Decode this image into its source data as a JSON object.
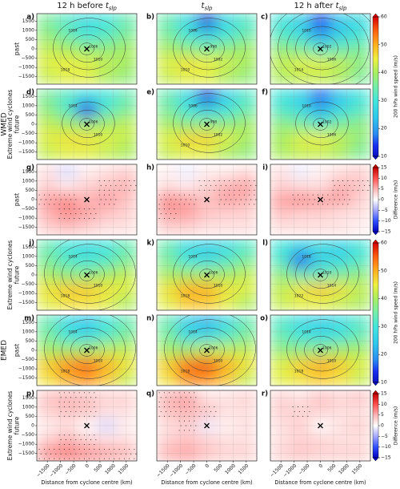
{
  "column_titles": [
    {
      "text": "12 h before",
      "symbol": "t",
      "subscript": "slp"
    },
    {
      "symbol": "t",
      "subscript": "slp"
    },
    {
      "text": "12 h after",
      "symbol": "t",
      "subscript": "slp"
    }
  ],
  "group_labels": [
    "WMED",
    "EMED"
  ],
  "side_labels": [
    "Extreme wind cyclones",
    "Extreme wind cyclones",
    "Extreme wind cyclones"
  ],
  "row_labels": [
    "past",
    "future",
    "past",
    "future",
    "past",
    "future"
  ],
  "axes": {
    "xlim": [
      -1900,
      1900
    ],
    "ylim": [
      -1900,
      1900
    ],
    "xticks": [
      {
        "value": -1500,
        "label": "−1500"
      },
      {
        "value": -1000,
        "label": "−1000"
      },
      {
        "value": -500,
        "label": "−500"
      },
      0,
      500,
      1000,
      1500
    ],
    "yticks": [
      {
        "value": -1500,
        "label": "−1500"
      },
      {
        "value": -1000,
        "label": "−1000"
      },
      {
        "value": -500,
        "label": "−500"
      },
      0,
      500,
      1000,
      1500
    ],
    "xlabel": "Distance from cyclone centre (km)"
  },
  "colorbars": {
    "wind": {
      "label": "200 hPa wind speed (m/s)",
      "lim": [
        10,
        60
      ],
      "ticks": [
        10,
        20,
        30,
        40,
        50,
        60
      ],
      "colors": [
        [
          10,
          "#0a10c0"
        ],
        [
          14,
          "#1a30f0"
        ],
        [
          18,
          "#2a8cf0"
        ],
        [
          24,
          "#30c8ec"
        ],
        [
          30,
          "#44e6dc"
        ],
        [
          35,
          "#74eeaa"
        ],
        [
          40,
          "#a8ee60"
        ],
        [
          45,
          "#eef040"
        ],
        [
          50,
          "#ffb020"
        ],
        [
          55,
          "#ff6010"
        ],
        [
          60,
          "#d40000"
        ]
      ]
    },
    "diff": {
      "label": "Difference (m/s)",
      "lim": [
        -15,
        15
      ],
      "ticks": [
        {
          "value": -15,
          "label": "−15"
        },
        {
          "value": -10,
          "label": "−10"
        },
        {
          "value": -5,
          "label": "−5"
        },
        0,
        5,
        10,
        15
      ],
      "colors": [
        [
          -15,
          "#0000c0"
        ],
        [
          -10,
          "#3050ff"
        ],
        [
          -5,
          "#a4a8ff"
        ],
        [
          0,
          "#ffffff"
        ],
        [
          5,
          "#ffb4b4"
        ],
        [
          10,
          "#ff5050"
        ],
        [
          15,
          "#c00000"
        ]
      ]
    }
  },
  "chart_data": [
    {
      "type": "contour",
      "title": "a)",
      "colorbar": "wind",
      "z": [
        [
          36,
          32,
          28,
          30,
          34
        ],
        [
          38,
          34,
          30,
          32,
          36
        ],
        [
          42,
          40,
          38,
          38,
          40
        ],
        [
          44,
          45,
          44,
          42,
          40
        ],
        [
          42,
          44,
          44,
          40,
          38
        ]
      ],
      "isobars": [
        1006,
        1010,
        1014,
        1018
      ]
    },
    {
      "type": "contour",
      "title": "b)",
      "colorbar": "wind",
      "z": [
        [
          34,
          28,
          12,
          28,
          32
        ],
        [
          36,
          30,
          26,
          30,
          34
        ],
        [
          40,
          38,
          36,
          38,
          40
        ],
        [
          44,
          46,
          45,
          43,
          40
        ],
        [
          42,
          44,
          44,
          40,
          38
        ]
      ],
      "isobars": [
        998,
        1002,
        1006,
        1010
      ]
    },
    {
      "type": "contour",
      "title": "c)",
      "colorbar": "wind",
      "z": [
        [
          30,
          26,
          14,
          24,
          28
        ],
        [
          32,
          28,
          20,
          26,
          30
        ],
        [
          38,
          36,
          32,
          34,
          36
        ],
        [
          42,
          44,
          44,
          42,
          38
        ],
        [
          40,
          42,
          42,
          40,
          36
        ]
      ],
      "isobars": [
        1002,
        1006,
        1010,
        1014,
        1018,
        1022
      ]
    },
    {
      "type": "contour",
      "title": "d)",
      "colorbar": "wind",
      "z": [
        [
          36,
          32,
          28,
          30,
          34
        ],
        [
          38,
          32,
          14,
          32,
          36
        ],
        [
          42,
          40,
          38,
          40,
          42
        ],
        [
          44,
          46,
          46,
          44,
          42
        ],
        [
          42,
          44,
          44,
          42,
          40
        ]
      ],
      "isobars": [
        1006,
        1010,
        1014
      ]
    },
    {
      "type": "contour",
      "title": "e)",
      "colorbar": "wind",
      "z": [
        [
          34,
          28,
          12,
          26,
          32
        ],
        [
          36,
          30,
          26,
          30,
          34
        ],
        [
          40,
          38,
          38,
          38,
          40
        ],
        [
          44,
          47,
          47,
          44,
          40
        ],
        [
          42,
          44,
          44,
          40,
          38
        ]
      ],
      "isobars": [
        998,
        1002,
        1006,
        1010
      ]
    },
    {
      "type": "contour",
      "title": "f)",
      "colorbar": "wind",
      "z": [
        [
          30,
          26,
          16,
          24,
          30
        ],
        [
          32,
          28,
          22,
          28,
          32
        ],
        [
          38,
          36,
          32,
          36,
          38
        ],
        [
          40,
          44,
          45,
          42,
          38
        ],
        [
          40,
          42,
          42,
          40,
          36
        ]
      ],
      "isobars": [
        1002,
        1006,
        1010
      ]
    },
    {
      "type": "contour",
      "title": "g)",
      "colorbar": "diff",
      "z": [
        [
          2,
          -2,
          1,
          2,
          3
        ],
        [
          3,
          1,
          3,
          4,
          5
        ],
        [
          6,
          7,
          5,
          6,
          4
        ],
        [
          5,
          7,
          6,
          4,
          3
        ],
        [
          3,
          4,
          3,
          2,
          2
        ]
      ],
      "stippled": [
        [
          0,
          0,
          0,
          0,
          0
        ],
        [
          0,
          0,
          0,
          1,
          1
        ],
        [
          1,
          1,
          0,
          1,
          0
        ],
        [
          0,
          1,
          1,
          0,
          0
        ],
        [
          0,
          0,
          0,
          0,
          0
        ]
      ]
    },
    {
      "type": "contour",
      "title": "h)",
      "colorbar": "diff",
      "z": [
        [
          1,
          -1,
          1,
          1,
          2
        ],
        [
          2,
          1,
          3,
          5,
          6
        ],
        [
          7,
          6,
          4,
          6,
          5
        ],
        [
          6,
          6,
          4,
          3,
          3
        ],
        [
          3,
          3,
          2,
          2,
          2
        ]
      ],
      "stippled": [
        [
          0,
          0,
          0,
          0,
          0
        ],
        [
          0,
          0,
          1,
          1,
          1
        ],
        [
          1,
          1,
          0,
          1,
          1
        ],
        [
          1,
          0,
          0,
          0,
          0
        ],
        [
          0,
          0,
          0,
          0,
          0
        ]
      ]
    },
    {
      "type": "contour",
      "title": "i)",
      "colorbar": "diff",
      "z": [
        [
          2,
          -1,
          1,
          2,
          3
        ],
        [
          3,
          2,
          2,
          5,
          4
        ],
        [
          6,
          7,
          6,
          6,
          3
        ],
        [
          4,
          3,
          3,
          2,
          2
        ],
        [
          2,
          2,
          2,
          2,
          1
        ]
      ],
      "stippled": [
        [
          0,
          0,
          0,
          0,
          0
        ],
        [
          0,
          0,
          0,
          1,
          1
        ],
        [
          0,
          1,
          1,
          1,
          0
        ],
        [
          0,
          0,
          0,
          0,
          0
        ],
        [
          0,
          0,
          0,
          0,
          0
        ]
      ]
    },
    {
      "type": "contour",
      "title": "j)",
      "colorbar": "wind",
      "z": [
        [
          34,
          30,
          28,
          30,
          34
        ],
        [
          36,
          32,
          30,
          32,
          36
        ],
        [
          40,
          38,
          38,
          40,
          42
        ],
        [
          46,
          48,
          48,
          46,
          44
        ],
        [
          44,
          46,
          46,
          44,
          40
        ]
      ],
      "isobars": [
        1006,
        1010,
        1014,
        1018,
        1022
      ]
    },
    {
      "type": "contour",
      "title": "k)",
      "colorbar": "wind",
      "z": [
        [
          34,
          28,
          26,
          28,
          32
        ],
        [
          36,
          30,
          28,
          32,
          36
        ],
        [
          40,
          40,
          40,
          40,
          42
        ],
        [
          46,
          50,
          50,
          46,
          44
        ],
        [
          44,
          48,
          48,
          44,
          40
        ]
      ],
      "isobars": [
        1006,
        1010,
        1014,
        1018
      ]
    },
    {
      "type": "contour",
      "title": "l)",
      "colorbar": "wind",
      "z": [
        [
          30,
          26,
          28,
          26,
          30
        ],
        [
          32,
          16,
          26,
          28,
          32
        ],
        [
          38,
          34,
          34,
          36,
          38
        ],
        [
          42,
          46,
          48,
          46,
          42
        ],
        [
          42,
          44,
          44,
          42,
          40
        ]
      ],
      "isobars": [
        1010,
        1014,
        1018,
        1022
      ]
    },
    {
      "type": "contour",
      "title": "m)",
      "colorbar": "wind",
      "z": [
        [
          34,
          28,
          24,
          30,
          34
        ],
        [
          36,
          30,
          28,
          32,
          36
        ],
        [
          40,
          40,
          40,
          42,
          42
        ],
        [
          48,
          52,
          54,
          50,
          46
        ],
        [
          46,
          50,
          52,
          48,
          42
        ]
      ],
      "isobars": [
        1006,
        1010,
        1014,
        1018,
        1022
      ]
    },
    {
      "type": "contour",
      "title": "n)",
      "colorbar": "wind",
      "z": [
        [
          34,
          26,
          22,
          28,
          34
        ],
        [
          36,
          28,
          28,
          32,
          36
        ],
        [
          40,
          40,
          42,
          42,
          42
        ],
        [
          48,
          54,
          56,
          50,
          46
        ],
        [
          46,
          52,
          52,
          48,
          42
        ]
      ],
      "isobars": [
        1006,
        1010,
        1014,
        1018,
        1022
      ]
    },
    {
      "type": "contour",
      "title": "o)",
      "colorbar": "wind",
      "z": [
        [
          32,
          28,
          26,
          28,
          32
        ],
        [
          34,
          30,
          28,
          30,
          34
        ],
        [
          38,
          38,
          38,
          40,
          40
        ],
        [
          44,
          48,
          50,
          48,
          44
        ],
        [
          44,
          46,
          48,
          46,
          42
        ]
      ],
      "isobars": [
        1006,
        1010,
        1014,
        1018
      ]
    },
    {
      "type": "contour",
      "title": "p)",
      "colorbar": "diff",
      "z": [
        [
          4,
          5,
          4,
          3,
          3
        ],
        [
          3,
          4,
          4,
          2,
          2
        ],
        [
          1,
          2,
          0,
          -2,
          1
        ],
        [
          3,
          5,
          3,
          2,
          2
        ],
        [
          7,
          8,
          7,
          6,
          5
        ]
      ],
      "stippled": [
        [
          0,
          1,
          1,
          0,
          0
        ],
        [
          0,
          1,
          1,
          0,
          0
        ],
        [
          0,
          0,
          0,
          0,
          0
        ],
        [
          0,
          1,
          1,
          0,
          0
        ],
        [
          1,
          1,
          1,
          1,
          1
        ]
      ]
    },
    {
      "type": "contour",
      "title": "q)",
      "colorbar": "diff",
      "z": [
        [
          5,
          6,
          2,
          2,
          3
        ],
        [
          4,
          5,
          4,
          2,
          2
        ],
        [
          2,
          3,
          -1,
          1,
          2
        ],
        [
          3,
          4,
          3,
          2,
          2
        ],
        [
          5,
          6,
          4,
          3,
          3
        ]
      ],
      "stippled": [
        [
          1,
          1,
          0,
          0,
          0
        ],
        [
          1,
          1,
          1,
          0,
          0
        ],
        [
          0,
          1,
          0,
          0,
          0
        ],
        [
          0,
          0,
          0,
          0,
          0
        ],
        [
          0,
          0,
          0,
          0,
          0
        ]
      ]
    },
    {
      "type": "contour",
      "title": "r)",
      "colorbar": "diff",
      "z": [
        [
          3,
          2,
          4,
          3,
          4
        ],
        [
          3,
          3,
          3,
          2,
          2
        ],
        [
          2,
          3,
          0,
          2,
          3
        ],
        [
          2,
          3,
          3,
          2,
          2
        ],
        [
          3,
          4,
          3,
          3,
          3
        ]
      ],
      "stippled": [
        [
          0,
          0,
          0,
          0,
          0
        ],
        [
          0,
          1,
          0,
          0,
          0
        ],
        [
          0,
          0,
          0,
          0,
          0
        ],
        [
          0,
          0,
          0,
          0,
          0
        ],
        [
          0,
          0,
          0,
          0,
          0
        ]
      ]
    }
  ]
}
